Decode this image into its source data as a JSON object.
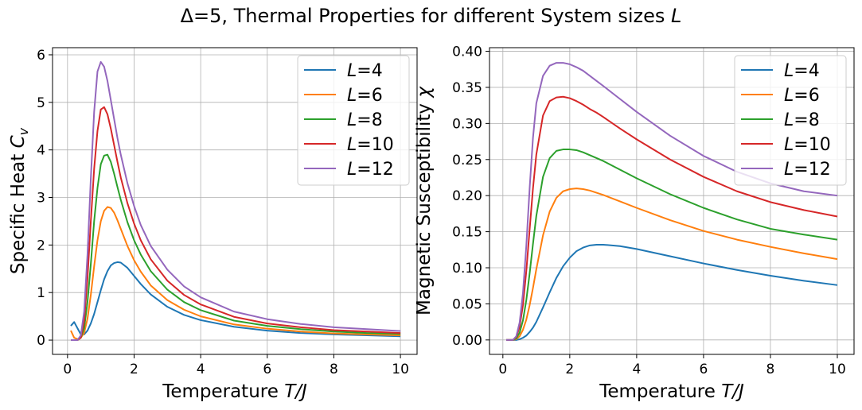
{
  "figure": {
    "title_prefix": "Δ=5, Thermal Properties for different System sizes ",
    "title_symbol": "L"
  },
  "chart_data": [
    {
      "type": "line",
      "ylabel": "Specific Heat C_v",
      "xlabel": "Temperature T/J",
      "xlim": [
        -0.45,
        10.5
      ],
      "ylim": [
        -0.3,
        6.15
      ],
      "xticks": [
        "0",
        "2",
        "4",
        "6",
        "8",
        "10"
      ],
      "yticks": [
        "0",
        "1",
        "2",
        "3",
        "4",
        "5",
        "6"
      ],
      "grid": true,
      "legend_position": "upper right",
      "x": [
        0.1,
        0.2,
        0.3,
        0.4,
        0.5,
        0.6,
        0.7,
        0.8,
        0.9,
        1.0,
        1.1,
        1.2,
        1.3,
        1.4,
        1.5,
        1.6,
        1.8,
        2.0,
        2.2,
        2.5,
        3.0,
        3.5,
        4.0,
        5.0,
        6.0,
        7.0,
        8.0,
        9.0,
        10.0
      ],
      "series": [
        {
          "name": "L=4",
          "color": "#1f77b4",
          "values": [
            0.3,
            0.38,
            0.25,
            0.12,
            0.12,
            0.2,
            0.35,
            0.55,
            0.8,
            1.05,
            1.28,
            1.45,
            1.57,
            1.62,
            1.64,
            1.63,
            1.52,
            1.35,
            1.18,
            0.96,
            0.7,
            0.53,
            0.42,
            0.28,
            0.2,
            0.15,
            0.12,
            0.1,
            0.08
          ]
        },
        {
          "name": "L=6",
          "color": "#ff7f0e",
          "values": [
            0.2,
            0.05,
            0.02,
            0.05,
            0.15,
            0.45,
            0.95,
            1.55,
            2.1,
            2.5,
            2.72,
            2.8,
            2.78,
            2.68,
            2.52,
            2.34,
            1.98,
            1.68,
            1.44,
            1.15,
            0.84,
            0.64,
            0.5,
            0.33,
            0.24,
            0.18,
            0.14,
            0.12,
            0.1
          ]
        },
        {
          "name": "L=8",
          "color": "#2ca02c",
          "values": [
            0.0,
            0.0,
            0.0,
            0.05,
            0.25,
            0.8,
            1.6,
            2.5,
            3.2,
            3.7,
            3.88,
            3.9,
            3.75,
            3.5,
            3.22,
            2.95,
            2.48,
            2.1,
            1.8,
            1.45,
            1.06,
            0.8,
            0.63,
            0.41,
            0.3,
            0.23,
            0.18,
            0.15,
            0.13
          ]
        },
        {
          "name": "L=10",
          "color": "#d62728",
          "values": [
            0.0,
            0.0,
            0.0,
            0.05,
            0.4,
            1.3,
            2.5,
            3.6,
            4.4,
            4.85,
            4.9,
            4.75,
            4.45,
            4.1,
            3.75,
            3.42,
            2.88,
            2.45,
            2.1,
            1.7,
            1.25,
            0.95,
            0.75,
            0.49,
            0.35,
            0.27,
            0.21,
            0.18,
            0.15
          ]
        },
        {
          "name": "L=12",
          "color": "#9467bd",
          "values": [
            0.0,
            0.0,
            0.0,
            0.1,
            0.6,
            1.8,
            3.4,
            4.8,
            5.65,
            5.85,
            5.75,
            5.45,
            5.05,
            4.65,
            4.25,
            3.9,
            3.3,
            2.82,
            2.42,
            1.98,
            1.48,
            1.13,
            0.9,
            0.6,
            0.44,
            0.34,
            0.27,
            0.23,
            0.19
          ]
        }
      ]
    },
    {
      "type": "line",
      "ylabel": "Magnetic Susceptibility χ",
      "xlabel": "Temperature T/J",
      "xlim": [
        -0.4,
        10.5
      ],
      "ylim": [
        -0.02,
        0.405
      ],
      "xticks": [
        "0",
        "2",
        "4",
        "6",
        "8",
        "10"
      ],
      "yticks": [
        "0.00",
        "0.05",
        "0.10",
        "0.15",
        "0.20",
        "0.25",
        "0.30",
        "0.35",
        "0.40"
      ],
      "grid": true,
      "legend_position": "upper right",
      "x": [
        0.1,
        0.2,
        0.3,
        0.4,
        0.5,
        0.6,
        0.7,
        0.8,
        0.9,
        1.0,
        1.2,
        1.4,
        1.6,
        1.8,
        2.0,
        2.2,
        2.4,
        2.6,
        2.8,
        3.0,
        3.5,
        4.0,
        5.0,
        6.0,
        7.0,
        8.0,
        9.0,
        10.0
      ],
      "series": [
        {
          "name": "L=4",
          "color": "#1f77b4",
          "values": [
            0.0,
            0.0,
            0.0,
            0.0,
            0.001,
            0.003,
            0.006,
            0.011,
            0.017,
            0.025,
            0.045,
            0.066,
            0.086,
            0.102,
            0.114,
            0.123,
            0.128,
            0.131,
            0.132,
            0.132,
            0.13,
            0.126,
            0.116,
            0.106,
            0.097,
            0.089,
            0.082,
            0.076
          ]
        },
        {
          "name": "L=6",
          "color": "#ff7f0e",
          "values": [
            0.0,
            0.0,
            0.0,
            0.001,
            0.005,
            0.014,
            0.028,
            0.048,
            0.072,
            0.098,
            0.145,
            0.178,
            0.197,
            0.206,
            0.209,
            0.21,
            0.209,
            0.207,
            0.204,
            0.201,
            0.192,
            0.183,
            0.166,
            0.151,
            0.139,
            0.129,
            0.12,
            0.112
          ]
        },
        {
          "name": "L=8",
          "color": "#2ca02c",
          "values": [
            0.0,
            0.0,
            0.0,
            0.002,
            0.01,
            0.027,
            0.055,
            0.092,
            0.133,
            0.172,
            0.226,
            0.252,
            0.262,
            0.264,
            0.264,
            0.263,
            0.26,
            0.256,
            0.252,
            0.248,
            0.236,
            0.224,
            0.202,
            0.183,
            0.167,
            0.154,
            0.146,
            0.139
          ]
        },
        {
          "name": "L=10",
          "color": "#d62728",
          "values": [
            0.0,
            0.0,
            0.0,
            0.004,
            0.018,
            0.048,
            0.095,
            0.153,
            0.21,
            0.257,
            0.311,
            0.331,
            0.336,
            0.337,
            0.335,
            0.331,
            0.326,
            0.32,
            0.315,
            0.309,
            0.293,
            0.278,
            0.25,
            0.226,
            0.206,
            0.191,
            0.18,
            0.171
          ]
        },
        {
          "name": "L=12",
          "color": "#9467bd",
          "values": [
            0.0,
            0.0,
            0.0,
            0.005,
            0.024,
            0.065,
            0.13,
            0.21,
            0.28,
            0.328,
            0.366,
            0.38,
            0.384,
            0.384,
            0.382,
            0.378,
            0.373,
            0.366,
            0.359,
            0.352,
            0.334,
            0.316,
            0.283,
            0.255,
            0.233,
            0.217,
            0.206,
            0.2
          ]
        }
      ]
    }
  ]
}
